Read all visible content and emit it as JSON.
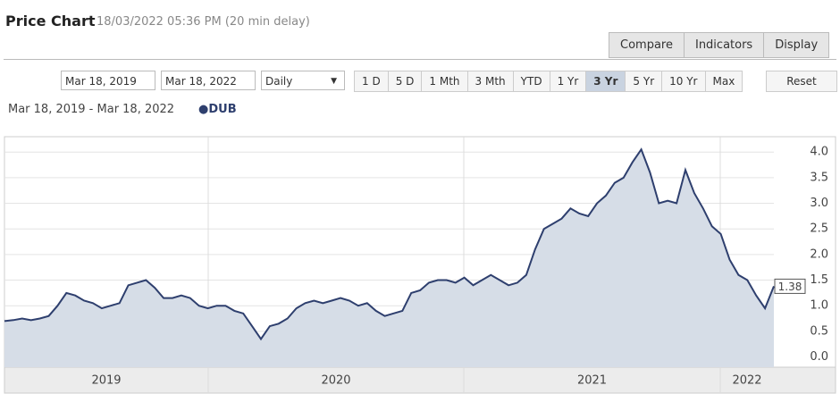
{
  "ui": {
    "title": "Price Chart",
    "timestamp": "18/03/2022 05:36 PM (20 min delay)",
    "toolbar": [
      "Compare",
      "Indicators",
      "Display"
    ],
    "date_from": "Mar 18, 2019",
    "date_to": "Mar 18, 2022",
    "interval": "Daily",
    "ranges": [
      "1 D",
      "5 D",
      "1 Mth",
      "3 Mth",
      "YTD",
      "1 Yr",
      "3 Yr",
      "5 Yr",
      "10 Yr",
      "Max"
    ],
    "active_range_index": 6,
    "reset": "Reset",
    "range_text": "Mar 18, 2019 - Mar 18, 2022"
  },
  "chart_data": {
    "type": "line",
    "x_labels": [
      "2019",
      "2020",
      "2021",
      "2022"
    ],
    "series": [
      {
        "name": "DUB",
        "color": "#2e3f6e",
        "fill": "#d6dde7",
        "values": [
          0.7,
          0.72,
          0.75,
          0.72,
          0.75,
          0.8,
          1.0,
          1.25,
          1.2,
          1.1,
          1.05,
          0.95,
          1.0,
          1.05,
          1.4,
          1.45,
          1.5,
          1.35,
          1.15,
          1.15,
          1.2,
          1.15,
          1.0,
          0.95,
          1.0,
          1.0,
          0.9,
          0.85,
          0.6,
          0.35,
          0.6,
          0.65,
          0.75,
          0.95,
          1.05,
          1.1,
          1.05,
          1.1,
          1.15,
          1.1,
          1.0,
          1.05,
          0.9,
          0.8,
          0.85,
          0.9,
          1.25,
          1.3,
          1.45,
          1.5,
          1.5,
          1.45,
          1.55,
          1.4,
          1.5,
          1.6,
          1.5,
          1.4,
          1.45,
          1.6,
          2.1,
          2.5,
          2.6,
          2.7,
          2.9,
          2.8,
          2.75,
          3.0,
          3.15,
          3.4,
          3.5,
          3.8,
          4.05,
          3.6,
          3.0,
          3.05,
          3.0,
          3.65,
          3.2,
          2.9,
          2.55,
          2.4,
          1.9,
          1.6,
          1.5,
          1.2,
          0.95,
          1.38
        ]
      }
    ],
    "last_value": 1.38,
    "ylim": [
      -0.2,
      4.3
    ],
    "yticks": [
      {
        "value": 0,
        "label": "0.0"
      },
      0.5,
      {
        "value": 1,
        "label": "1.0"
      },
      1.5,
      {
        "value": 2,
        "label": "2.0"
      },
      2.5,
      {
        "value": 3,
        "label": "3.0"
      },
      3.5,
      {
        "value": 4,
        "label": "4.0"
      }
    ],
    "grid": true
  }
}
